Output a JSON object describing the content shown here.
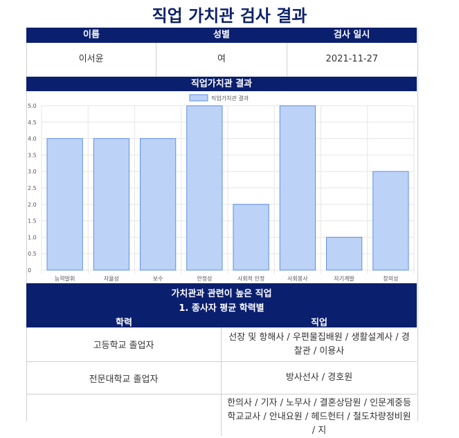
{
  "title": "직업 가치관 검사 결과",
  "info": {
    "headers": [
      "이름",
      "성별",
      "검사 일시"
    ],
    "values": [
      "이서윤",
      "여",
      "2021-11-27"
    ]
  },
  "chart_section_title": "직업가치관 결과",
  "chart_data": {
    "type": "bar",
    "title": "",
    "categories": [
      "능력발휘",
      "자율성",
      "보수",
      "안정성",
      "사회적 인정",
      "사회봉사",
      "자기계발",
      "창의성"
    ],
    "series": [
      {
        "name": "직업가치관 결과",
        "values": [
          4,
          4,
          4,
          5,
          2,
          5,
          1,
          3
        ]
      }
    ],
    "ylim": [
      0,
      5
    ],
    "yticks": [
      "5.0",
      "4.5",
      "4.0",
      "3.5",
      "3.0",
      "2.5",
      "2.0",
      "1.5",
      "1.0",
      "0.5",
      "0"
    ],
    "grid": true,
    "legend": "top-center",
    "colors": {
      "fill": "#bcd2f7",
      "stroke": "#5b8fe6"
    }
  },
  "jobs": {
    "title": "가치관과 관련이 높은 직업",
    "subtitle": "1. 종사자 평균 학력별",
    "col_headers": [
      "학력",
      "직업"
    ],
    "rows": [
      {
        "education": "고등학교 졸업자",
        "jobs": "선장 및 항해사 / 우편물집배원 / 생활설계사 / 경찰관 / 이용사"
      },
      {
        "education": "전문대학교 졸업자",
        "jobs": "방사선사 / 경호원"
      },
      {
        "education": "",
        "jobs": "한의사 / 기자 / 노무사 / 결혼상담원 / 인문계중등학교교사 / 안내요원 / 헤드헌터 / 철도차량정비원 / 지"
      }
    ]
  }
}
